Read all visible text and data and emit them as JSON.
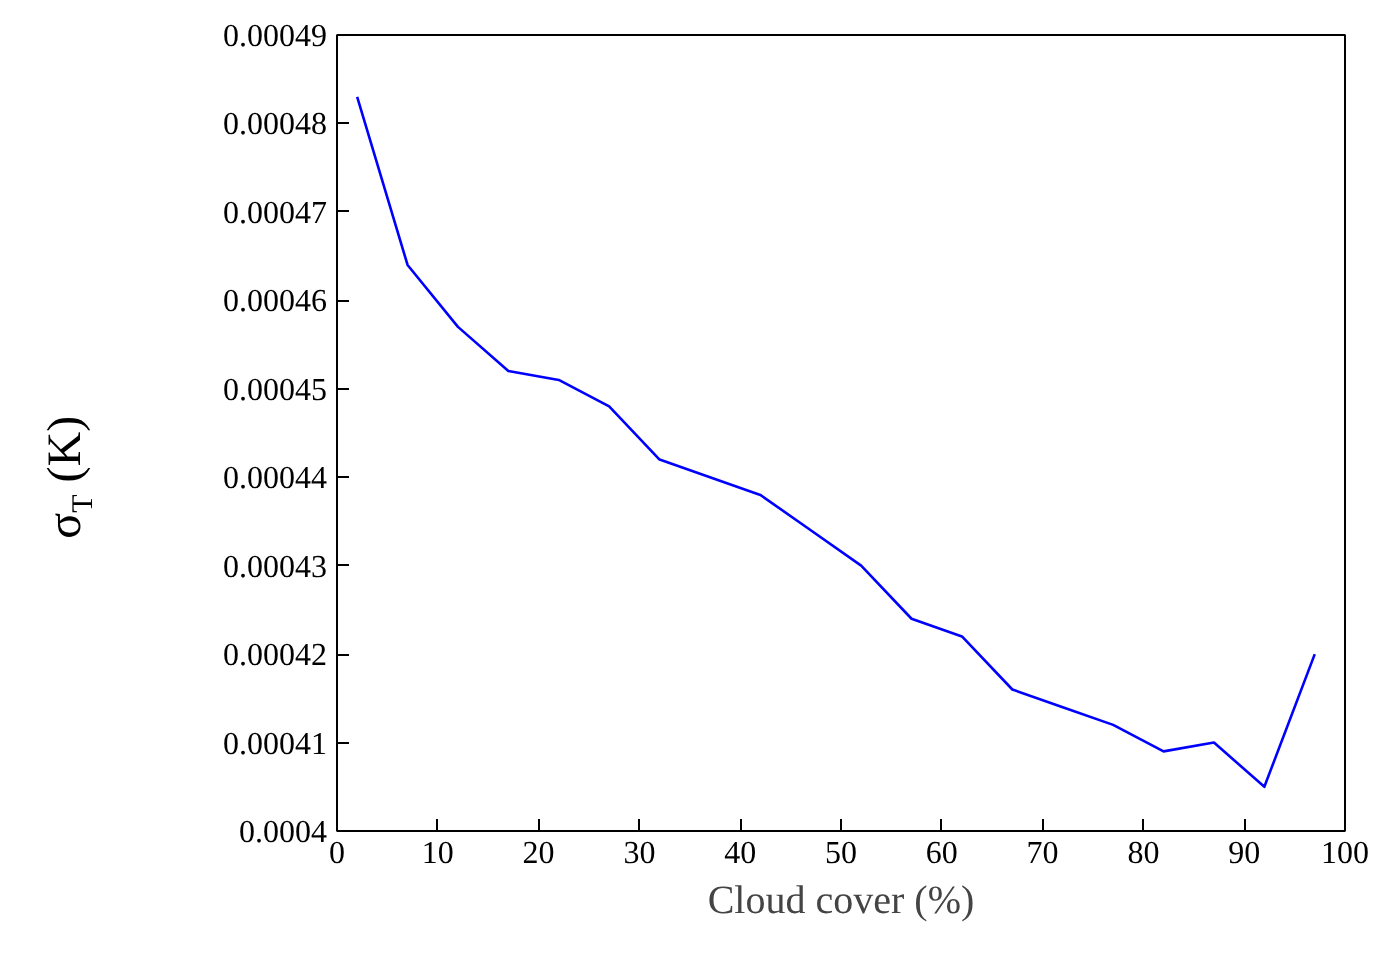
{
  "chart_data": {
    "type": "line",
    "xlabel": "Cloud cover (%)",
    "ylabel": "σ$_{T}$ (K)",
    "x": [
      2,
      7,
      12,
      17,
      22,
      27,
      32,
      37,
      42,
      47,
      52,
      57,
      62,
      67,
      72,
      77,
      82,
      87,
      92,
      97
    ],
    "series": [
      {
        "color": "#0000ff",
        "values": [
          0.000483,
          0.000464,
          0.000457,
          0.000452,
          0.000451,
          0.000448,
          0.000442,
          0.00044,
          0.000438,
          0.000434,
          0.00043,
          0.000424,
          0.000422,
          0.000416,
          0.000414,
          0.000412,
          0.000409,
          0.00041,
          0.000405,
          0.00042
        ]
      }
    ],
    "xlim": [
      0,
      100
    ],
    "xticks": [
      0,
      10,
      20,
      30,
      40,
      50,
      60,
      70,
      80,
      90,
      100
    ],
    "ylim": [
      0.0004,
      0.00049
    ],
    "yticks": [
      0.0004,
      0.00041,
      0.00042,
      0.00043,
      0.00044,
      0.00045,
      0.00046,
      0.00047,
      0.00048,
      0.00049
    ],
    "grid": false,
    "marker": "none",
    "line_style": "solid"
  }
}
